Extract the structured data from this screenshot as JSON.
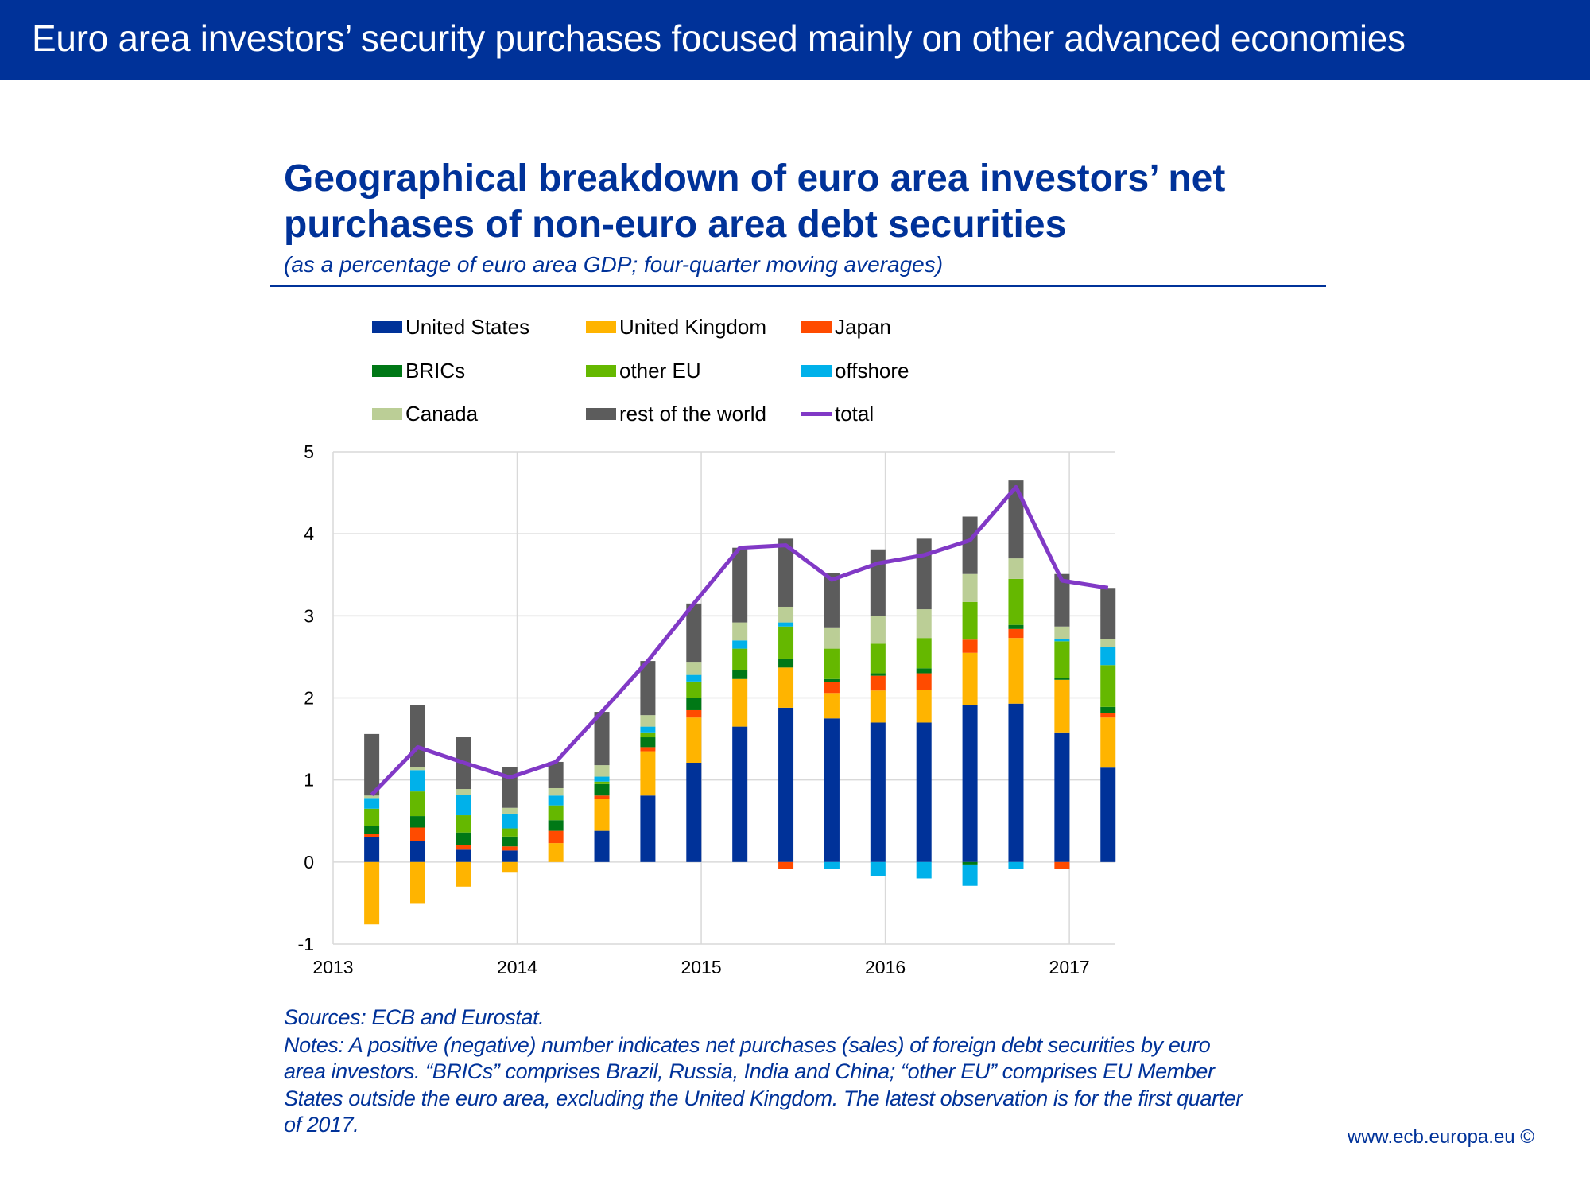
{
  "header": {
    "title": "Euro area investors’ security purchases focused mainly on other advanced economies"
  },
  "chart_data": {
    "type": "bar",
    "stacked": true,
    "title_lines": [
      "Geographical breakdown of euro area investors’ net",
      "purchases of non-euro area debt securities"
    ],
    "subtitle": "(as a percentage of euro area GDP; four-quarter moving averages)",
    "x": [
      "2013 Q1",
      "2013 Q2",
      "2013 Q3",
      "2013 Q4",
      "2014 Q1",
      "2014 Q2",
      "2014 Q3",
      "2014 Q4",
      "2015 Q1",
      "2015 Q2",
      "2015 Q3",
      "2015 Q4",
      "2016 Q1",
      "2016 Q2",
      "2016 Q3",
      "2016 Q4",
      "2017 Q1"
    ],
    "x_ticks": [
      "2013",
      "2014",
      "2015",
      "2016",
      "2017"
    ],
    "y_ticks": [
      "5",
      "4",
      "3",
      "2",
      "1",
      "0",
      "-1"
    ],
    "ylim": [
      -1,
      5
    ],
    "xlim": [
      2013,
      2017.25
    ],
    "grid": true,
    "legend_position": "top",
    "series": [
      {
        "name": "United States",
        "kind": "bar",
        "color": "#003299",
        "values": [
          0.3,
          0.26,
          0.15,
          0.14,
          0,
          0.38,
          0.81,
          1.21,
          1.65,
          1.88,
          1.75,
          1.7,
          1.7,
          1.91,
          1.93,
          1.58,
          1.15
        ]
      },
      {
        "name": "United Kingdom",
        "kind": "bar",
        "color": "#FFB400",
        "values": [
          -0.76,
          -0.51,
          -0.3,
          -0.13,
          0.23,
          0.39,
          0.54,
          0.55,
          0.58,
          0.49,
          0.31,
          0.39,
          0.4,
          0.64,
          0.8,
          0.64,
          0.61
        ]
      },
      {
        "name": "Japan",
        "kind": "bar",
        "color": "#FF4B00",
        "values": [
          0.04,
          0.16,
          0.06,
          0.05,
          0.15,
          0.04,
          0.05,
          0.09,
          0,
          -0.08,
          0.13,
          0.18,
          0.2,
          0.16,
          0.11,
          -0.08,
          0.06
        ]
      },
      {
        "name": "BRICs",
        "kind": "bar",
        "color": "#007816",
        "values": [
          0.1,
          0.14,
          0.15,
          0.12,
          0.13,
          0.14,
          0.12,
          0.15,
          0.11,
          0.11,
          0.04,
          0.03,
          0.06,
          -0.03,
          0.05,
          0.02,
          0.07
        ]
      },
      {
        "name": "other EU",
        "kind": "bar",
        "color": "#65B800",
        "values": [
          0.21,
          0.3,
          0.21,
          0.1,
          0.18,
          0.03,
          0.06,
          0.2,
          0.26,
          0.39,
          0.37,
          0.36,
          0.37,
          0.46,
          0.56,
          0.45,
          0.51
        ]
      },
      {
        "name": "offshore",
        "kind": "bar",
        "color": "#00B1EA",
        "values": [
          0.13,
          0.26,
          0.25,
          0.18,
          0.12,
          0.06,
          0.07,
          0.08,
          0.1,
          0.05,
          -0.08,
          -0.17,
          -0.2,
          -0.26,
          -0.08,
          0.03,
          0.22
        ]
      },
      {
        "name": "Canada",
        "kind": "bar",
        "color": "#BBCE96",
        "values": [
          0.03,
          0.04,
          0.07,
          0.07,
          0.09,
          0.14,
          0.14,
          0.16,
          0.22,
          0.19,
          0.26,
          0.34,
          0.35,
          0.34,
          0.25,
          0.15,
          0.1
        ]
      },
      {
        "name": "rest of the world",
        "kind": "bar",
        "color": "#5C5C5C",
        "values": [
          0.75,
          0.75,
          0.63,
          0.5,
          0.32,
          0.65,
          0.66,
          0.71,
          0.91,
          0.83,
          0.66,
          0.81,
          0.86,
          0.7,
          0.95,
          0.64,
          0.62
        ]
      },
      {
        "name": "total",
        "kind": "line",
        "color": "#8139C6",
        "values": [
          0.82,
          1.4,
          1.21,
          1.03,
          1.22,
          1.83,
          2.45,
          3.15,
          3.83,
          3.86,
          3.44,
          3.64,
          3.74,
          3.92,
          4.57,
          3.43,
          3.34
        ]
      }
    ]
  },
  "notes": {
    "sources": "Sources: ECB and Eurostat.",
    "lines": [
      "Notes: A positive (negative) number indicates net purchases (sales) of  foreign debt securities by euro",
      "area investors. “BRICs” comprises Brazil, Russia, India and China; “other EU” comprises EU Member",
      "States outside the euro area, excluding the United Kingdom. The latest observation is for the first quarter",
      "of 2017."
    ]
  },
  "footer": {
    "text": "www.ecb.europa.eu ©"
  }
}
